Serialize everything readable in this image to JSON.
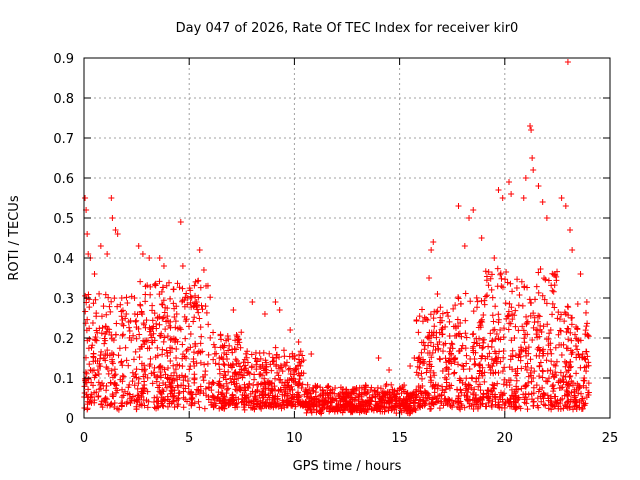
{
  "chart_data": {
    "type": "scatter",
    "title": "Day 047 of 2026, Rate Of TEC Index for receiver kir0",
    "xlabel": "GPS time / hours",
    "ylabel": "ROTI / TECUs",
    "xlim": [
      0,
      25
    ],
    "ylim": [
      0,
      0.9
    ],
    "xticks": [
      0,
      5,
      10,
      15,
      20,
      25
    ],
    "xtick_labels": [
      "0",
      "5",
      "10",
      "15",
      "20",
      "25"
    ],
    "yticks": [
      0,
      0.1,
      0.2,
      0.3,
      0.4,
      0.5,
      0.6,
      0.7,
      0.8,
      0.9
    ],
    "ytick_labels": [
      "0",
      "0.1",
      "0.2",
      "0.3",
      "0.4",
      "0.5",
      "0.6",
      "0.7",
      "0.8",
      "0.9"
    ],
    "grid": true,
    "marker": "+",
    "color": "#ff0000",
    "series": [
      {
        "name": "ROTI",
        "points": [
          [
            0.05,
            0.55
          ],
          [
            0.1,
            0.52
          ],
          [
            0.15,
            0.46
          ],
          [
            0.2,
            0.41
          ],
          [
            0.3,
            0.4
          ],
          [
            0.5,
            0.36
          ],
          [
            0.8,
            0.43
          ],
          [
            1.1,
            0.41
          ],
          [
            1.3,
            0.55
          ],
          [
            1.35,
            0.5
          ],
          [
            1.5,
            0.47
          ],
          [
            1.6,
            0.46
          ],
          [
            2.6,
            0.43
          ],
          [
            2.8,
            0.41
          ],
          [
            3.1,
            0.4
          ],
          [
            3.6,
            0.4
          ],
          [
            3.8,
            0.38
          ],
          [
            4.6,
            0.49
          ],
          [
            4.7,
            0.38
          ],
          [
            5.5,
            0.42
          ],
          [
            5.7,
            0.37
          ],
          [
            5.8,
            0.33
          ],
          [
            7.1,
            0.27
          ],
          [
            8.0,
            0.29
          ],
          [
            8.6,
            0.26
          ],
          [
            9.1,
            0.29
          ],
          [
            9.3,
            0.27
          ],
          [
            9.8,
            0.22
          ],
          [
            10.2,
            0.19
          ],
          [
            10.8,
            0.16
          ],
          [
            14.0,
            0.15
          ],
          [
            14.5,
            0.12
          ],
          [
            15.5,
            0.13
          ],
          [
            15.7,
            0.15
          ],
          [
            16.4,
            0.35
          ],
          [
            16.5,
            0.42
          ],
          [
            16.6,
            0.44
          ],
          [
            16.8,
            0.31
          ],
          [
            17.8,
            0.53
          ],
          [
            18.1,
            0.43
          ],
          [
            18.3,
            0.5
          ],
          [
            18.5,
            0.52
          ],
          [
            18.9,
            0.45
          ],
          [
            19.5,
            0.4
          ],
          [
            19.7,
            0.57
          ],
          [
            19.9,
            0.55
          ],
          [
            20.2,
            0.59
          ],
          [
            20.3,
            0.56
          ],
          [
            20.9,
            0.55
          ],
          [
            21.0,
            0.6
          ],
          [
            21.2,
            0.73
          ],
          [
            21.25,
            0.72
          ],
          [
            21.3,
            0.65
          ],
          [
            21.35,
            0.62
          ],
          [
            21.6,
            0.58
          ],
          [
            21.8,
            0.54
          ],
          [
            22.0,
            0.5
          ],
          [
            22.7,
            0.55
          ],
          [
            22.9,
            0.53
          ],
          [
            23.0,
            0.89
          ],
          [
            23.1,
            0.47
          ],
          [
            23.2,
            0.42
          ],
          [
            23.6,
            0.36
          ],
          [
            23.9,
            0.29
          ]
        ]
      }
    ]
  }
}
